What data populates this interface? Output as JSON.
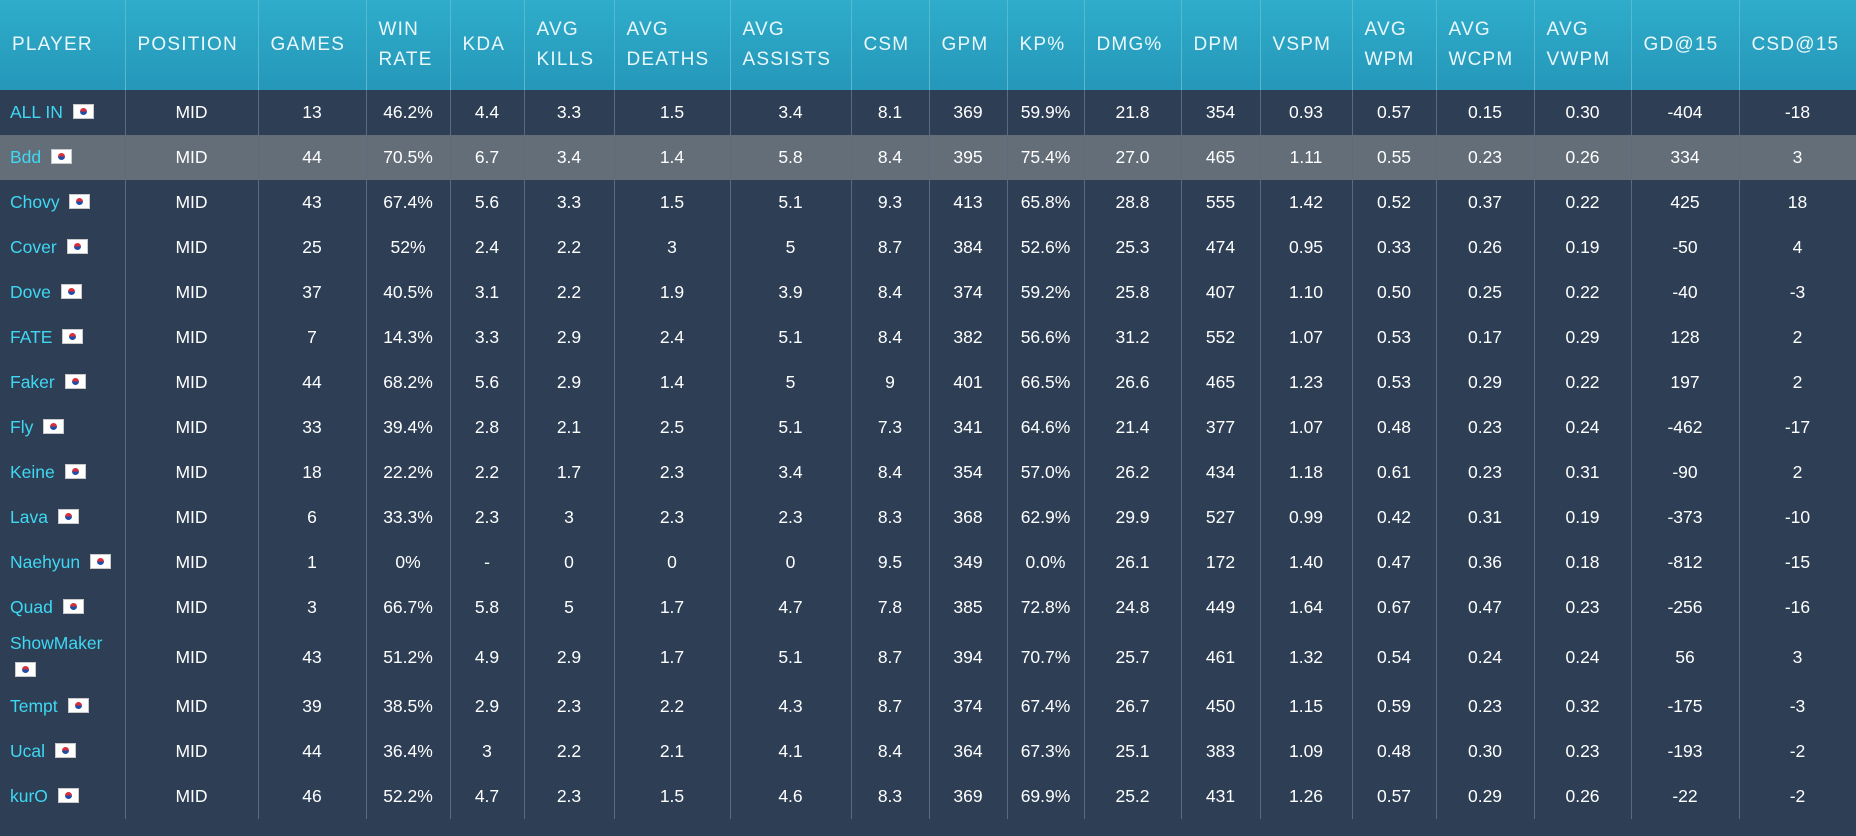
{
  "table": {
    "headers": [
      "PLAYER",
      "POSITION",
      "GAMES",
      "WIN RATE",
      "KDA",
      "AVG KILLS",
      "AVG DEATHS",
      "AVG ASSISTS",
      "CSM",
      "GPM",
      "KP%",
      "DMG%",
      "DPM",
      "VSPM",
      "AVG WPM",
      "AVG WCPM",
      "AVG VWPM",
      "GD@15",
      "CSD@15"
    ],
    "rows": [
      [
        "ALL IN",
        "MID",
        "13",
        "46.2%",
        "4.4",
        "3.3",
        "1.5",
        "3.4",
        "8.1",
        "369",
        "59.9%",
        "21.8",
        "354",
        "0.93",
        "0.57",
        "0.15",
        "0.30",
        "-404",
        "-18"
      ],
      [
        "Bdd",
        "MID",
        "44",
        "70.5%",
        "6.7",
        "3.4",
        "1.4",
        "5.8",
        "8.4",
        "395",
        "75.4%",
        "27.0",
        "465",
        "1.11",
        "0.55",
        "0.23",
        "0.26",
        "334",
        "3"
      ],
      [
        "Chovy",
        "MID",
        "43",
        "67.4%",
        "5.6",
        "3.3",
        "1.5",
        "5.1",
        "9.3",
        "413",
        "65.8%",
        "28.8",
        "555",
        "1.42",
        "0.52",
        "0.37",
        "0.22",
        "425",
        "18"
      ],
      [
        "Cover",
        "MID",
        "25",
        "52%",
        "2.4",
        "2.2",
        "3",
        "5",
        "8.7",
        "384",
        "52.6%",
        "25.3",
        "474",
        "0.95",
        "0.33",
        "0.26",
        "0.19",
        "-50",
        "4"
      ],
      [
        "Dove",
        "MID",
        "37",
        "40.5%",
        "3.1",
        "2.2",
        "1.9",
        "3.9",
        "8.4",
        "374",
        "59.2%",
        "25.8",
        "407",
        "1.10",
        "0.50",
        "0.25",
        "0.22",
        "-40",
        "-3"
      ],
      [
        "FATE",
        "MID",
        "7",
        "14.3%",
        "3.3",
        "2.9",
        "2.4",
        "5.1",
        "8.4",
        "382",
        "56.6%",
        "31.2",
        "552",
        "1.07",
        "0.53",
        "0.17",
        "0.29",
        "128",
        "2"
      ],
      [
        "Faker",
        "MID",
        "44",
        "68.2%",
        "5.6",
        "2.9",
        "1.4",
        "5",
        "9",
        "401",
        "66.5%",
        "26.6",
        "465",
        "1.23",
        "0.53",
        "0.29",
        "0.22",
        "197",
        "2"
      ],
      [
        "Fly",
        "MID",
        "33",
        "39.4%",
        "2.8",
        "2.1",
        "2.5",
        "5.1",
        "7.3",
        "341",
        "64.6%",
        "21.4",
        "377",
        "1.07",
        "0.48",
        "0.23",
        "0.24",
        "-462",
        "-17"
      ],
      [
        "Keine",
        "MID",
        "18",
        "22.2%",
        "2.2",
        "1.7",
        "2.3",
        "3.4",
        "8.4",
        "354",
        "57.0%",
        "26.2",
        "434",
        "1.18",
        "0.61",
        "0.23",
        "0.31",
        "-90",
        "2"
      ],
      [
        "Lava",
        "MID",
        "6",
        "33.3%",
        "2.3",
        "3",
        "2.3",
        "2.3",
        "8.3",
        "368",
        "62.9%",
        "29.9",
        "527",
        "0.99",
        "0.42",
        "0.31",
        "0.19",
        "-373",
        "-10"
      ],
      [
        "Naehyun",
        "MID",
        "1",
        "0%",
        "-",
        "0",
        "0",
        "0",
        "9.5",
        "349",
        "0.0%",
        "26.1",
        "172",
        "1.40",
        "0.47",
        "0.36",
        "0.18",
        "-812",
        "-15"
      ],
      [
        "Quad",
        "MID",
        "3",
        "66.7%",
        "5.8",
        "5",
        "1.7",
        "4.7",
        "7.8",
        "385",
        "72.8%",
        "24.8",
        "449",
        "1.64",
        "0.67",
        "0.47",
        "0.23",
        "-256",
        "-16"
      ],
      [
        "ShowMaker",
        "MID",
        "43",
        "51.2%",
        "4.9",
        "2.9",
        "1.7",
        "5.1",
        "8.7",
        "394",
        "70.7%",
        "25.7",
        "461",
        "1.32",
        "0.54",
        "0.24",
        "0.24",
        "56",
        "3"
      ],
      [
        "Tempt",
        "MID",
        "39",
        "38.5%",
        "2.9",
        "2.3",
        "2.2",
        "4.3",
        "8.7",
        "374",
        "67.4%",
        "26.7",
        "450",
        "1.15",
        "0.59",
        "0.23",
        "0.32",
        "-175",
        "-3"
      ],
      [
        "Ucal",
        "MID",
        "44",
        "36.4%",
        "3",
        "2.2",
        "2.1",
        "4.1",
        "8.4",
        "364",
        "67.3%",
        "25.1",
        "383",
        "1.09",
        "0.48",
        "0.30",
        "0.23",
        "-193",
        "-2"
      ],
      [
        "kurO",
        "MID",
        "46",
        "52.2%",
        "4.7",
        "2.3",
        "1.5",
        "4.6",
        "8.3",
        "369",
        "69.9%",
        "25.2",
        "431",
        "1.26",
        "0.57",
        "0.29",
        "0.26",
        "-22",
        "-2"
      ]
    ]
  }
}
